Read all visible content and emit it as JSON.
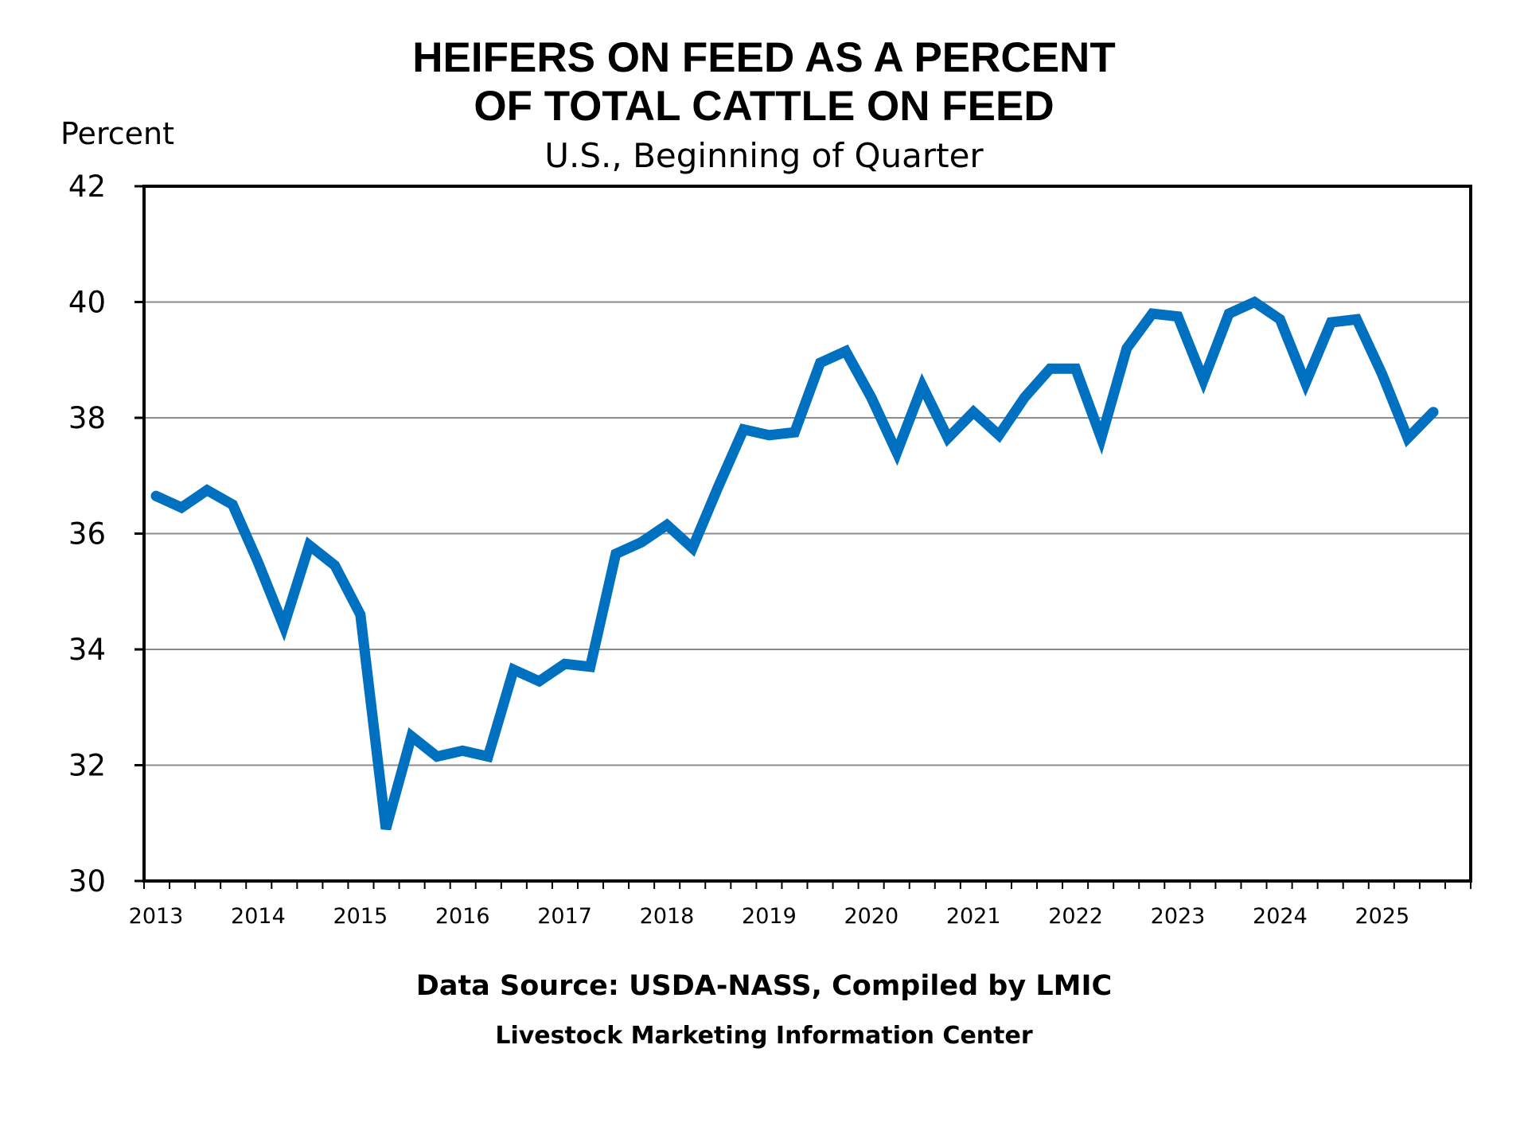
{
  "chart_data": {
    "type": "line",
    "title_line1": "HEIFERS ON FEED AS A PERCENT",
    "title_line2": "OF TOTAL CATTLE ON FEED",
    "subtitle": "U.S., Beginning of Quarter",
    "ylabel": "Percent",
    "xlabel": "",
    "ylim": [
      30,
      42
    ],
    "yticks": [
      30,
      32,
      34,
      36,
      38,
      40,
      42
    ],
    "x_tick_labels": [
      "2013",
      "2014",
      "2015",
      "2016",
      "2017",
      "2018",
      "2019",
      "2020",
      "2021",
      "2022",
      "2023",
      "2024",
      "2025"
    ],
    "grid": true,
    "legend": "none",
    "series": [
      {
        "color": "#0070c0",
        "x": [
          "2013-Q1",
          "2013-Q2",
          "2013-Q3",
          "2013-Q4",
          "2014-Q1",
          "2014-Q2",
          "2014-Q3",
          "2014-Q4",
          "2015-Q1",
          "2015-Q2",
          "2015-Q3",
          "2015-Q4",
          "2016-Q1",
          "2016-Q2",
          "2016-Q3",
          "2016-Q4",
          "2017-Q1",
          "2017-Q2",
          "2017-Q3",
          "2017-Q4",
          "2018-Q1",
          "2018-Q2",
          "2018-Q3",
          "2018-Q4",
          "2019-Q1",
          "2019-Q2",
          "2019-Q3",
          "2019-Q4",
          "2020-Q1",
          "2020-Q2",
          "2020-Q3",
          "2020-Q4",
          "2021-Q1",
          "2021-Q2",
          "2021-Q3",
          "2021-Q4",
          "2022-Q1",
          "2022-Q2",
          "2022-Q3",
          "2022-Q4",
          "2023-Q1",
          "2023-Q2",
          "2023-Q3",
          "2023-Q4",
          "2024-Q1",
          "2024-Q2",
          "2024-Q3",
          "2024-Q4",
          "2025-Q1",
          "2025-Q2",
          "2025-Q3"
        ],
        "values": [
          36.65,
          36.45,
          36.75,
          36.5,
          35.5,
          34.4,
          35.8,
          35.45,
          34.6,
          30.9,
          32.5,
          32.15,
          32.25,
          32.15,
          33.65,
          33.45,
          33.75,
          33.7,
          35.65,
          35.85,
          36.15,
          35.75,
          36.8,
          37.8,
          37.7,
          37.75,
          38.95,
          39.15,
          38.35,
          37.4,
          38.55,
          37.65,
          38.1,
          37.7,
          38.35,
          38.85,
          38.85,
          37.65,
          39.2,
          39.8,
          39.75,
          38.65,
          39.8,
          40.0,
          39.7,
          38.6,
          39.65,
          39.7,
          38.75,
          37.65,
          38.1
        ]
      }
    ]
  },
  "footer": {
    "source": "Data Source:  USDA-NASS, Compiled  by LMIC",
    "center": "Livestock Marketing Information Center"
  }
}
